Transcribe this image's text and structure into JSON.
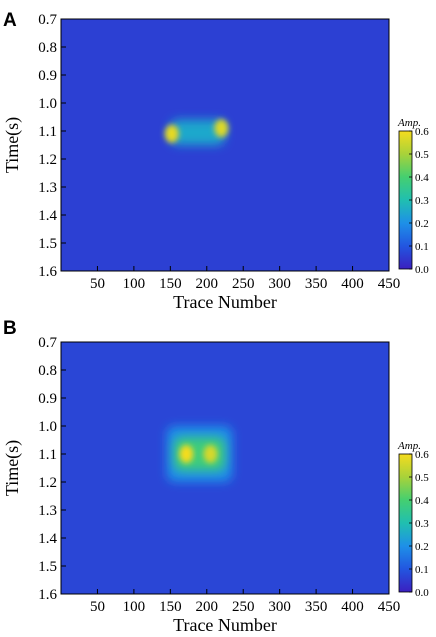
{
  "chart_data": [
    {
      "panel": "A",
      "type": "heatmap",
      "xlabel": "Trace Number",
      "ylabel": "Time(s)",
      "xlim": [
        0,
        450
      ],
      "ylim": [
        0.7,
        1.6
      ],
      "y_inverted": true,
      "xticks": [
        50,
        100,
        150,
        200,
        250,
        300,
        350,
        400,
        450
      ],
      "yticks": [
        0.7,
        0.8,
        0.9,
        1.0,
        1.1,
        1.2,
        1.3,
        1.4,
        1.5,
        1.6
      ],
      "colorbar": {
        "title": "Amp.",
        "range": [
          0.0,
          0.6
        ],
        "ticks": [
          "0.0",
          "0.1",
          "0.2",
          "0.3",
          "0.4",
          "0.5",
          "0.6"
        ],
        "colormap": [
          "#3b1fc0",
          "#2256e0",
          "#1e90e8",
          "#20bfb0",
          "#45cf70",
          "#a8d23a",
          "#f5dc1e"
        ]
      },
      "background_level": 0.06,
      "features": [
        {
          "kind": "rect",
          "x": [
            150,
            225
          ],
          "y": [
            1.06,
            1.15
          ],
          "value": 0.25
        },
        {
          "kind": "spot",
          "x": 152,
          "y": 1.11,
          "value": 0.58
        },
        {
          "kind": "spot",
          "x": 220,
          "y": 1.09,
          "value": 0.57
        }
      ]
    },
    {
      "panel": "B",
      "type": "heatmap",
      "xlabel": "Trace Number",
      "ylabel": "Time(s)",
      "xlim": [
        0,
        450
      ],
      "ylim": [
        0.7,
        1.6
      ],
      "y_inverted": true,
      "xticks": [
        50,
        100,
        150,
        200,
        250,
        300,
        350,
        400,
        450
      ],
      "yticks": [
        0.7,
        0.8,
        0.9,
        1.0,
        1.1,
        1.2,
        1.3,
        1.4,
        1.5,
        1.6
      ],
      "colorbar": {
        "title": "Amp.",
        "range": [
          0.0,
          0.6
        ],
        "ticks": [
          "0.0",
          "0.1",
          "0.2",
          "0.3",
          "0.4",
          "0.5",
          "0.6"
        ],
        "colormap": [
          "#3b1fc0",
          "#2256e0",
          "#1e90e8",
          "#20bfb0",
          "#45cf70",
          "#a8d23a",
          "#f5dc1e"
        ]
      },
      "background_level": 0.07,
      "features": [
        {
          "kind": "rect",
          "x": [
            145,
            235
          ],
          "y": [
            1.0,
            1.2
          ],
          "value": 0.2
        },
        {
          "kind": "rect",
          "x": [
            155,
            225
          ],
          "y": [
            1.04,
            1.16
          ],
          "value": 0.38
        },
        {
          "kind": "spot",
          "x": 172,
          "y": 1.1,
          "value": 0.6
        },
        {
          "kind": "spot",
          "x": 205,
          "y": 1.1,
          "value": 0.56
        }
      ]
    }
  ]
}
